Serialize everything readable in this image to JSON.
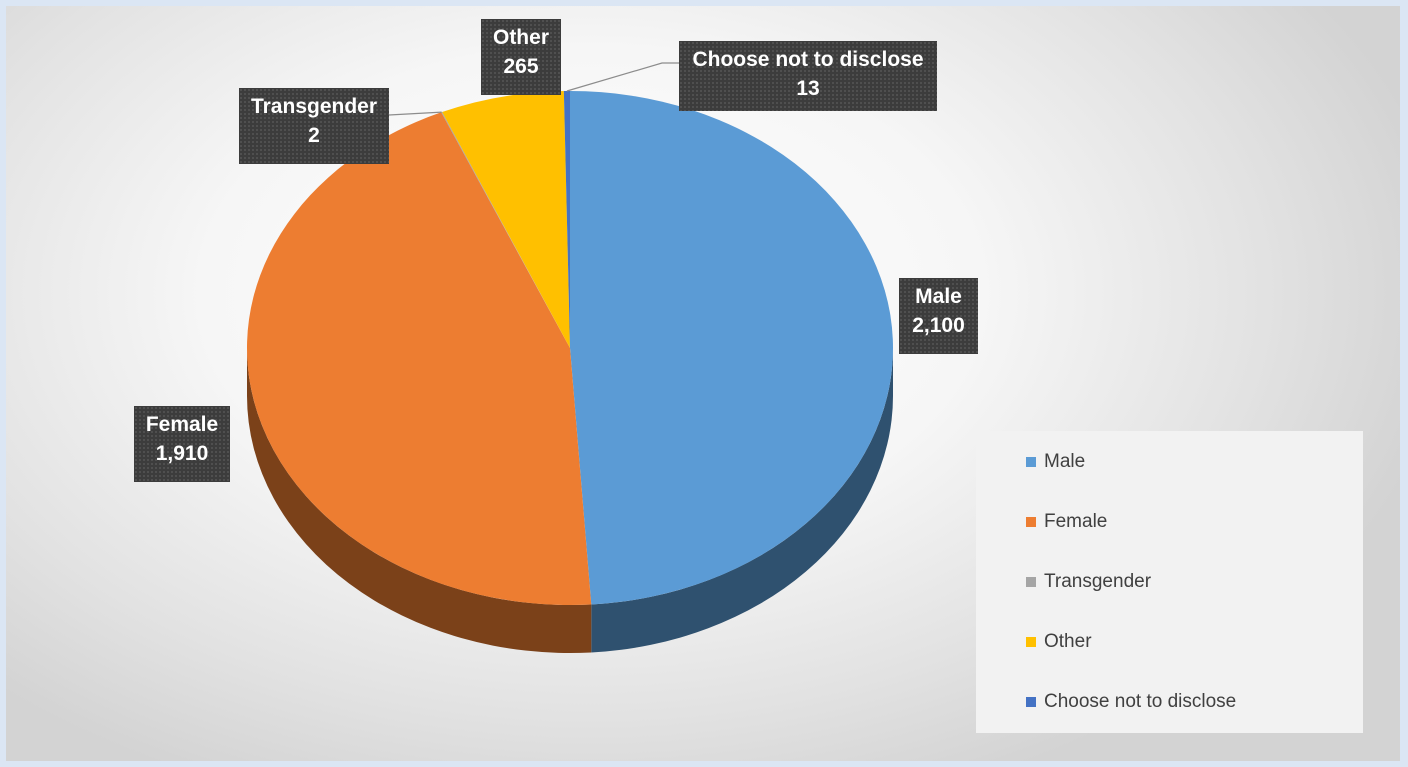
{
  "chart_data": {
    "type": "pie",
    "title": "",
    "categories": [
      "Male",
      "Female",
      "Transgender",
      "Other",
      "Choose not to disclose"
    ],
    "values": [
      2100,
      1910,
      2,
      265,
      13
    ],
    "value_labels": [
      "2,100",
      "1,910",
      "2",
      "265",
      "13"
    ],
    "colors": [
      "#5b9bd5",
      "#ed7d31",
      "#a5a5a5",
      "#ffc000",
      "#4472c4"
    ],
    "style": "3d",
    "legend": "right"
  }
}
